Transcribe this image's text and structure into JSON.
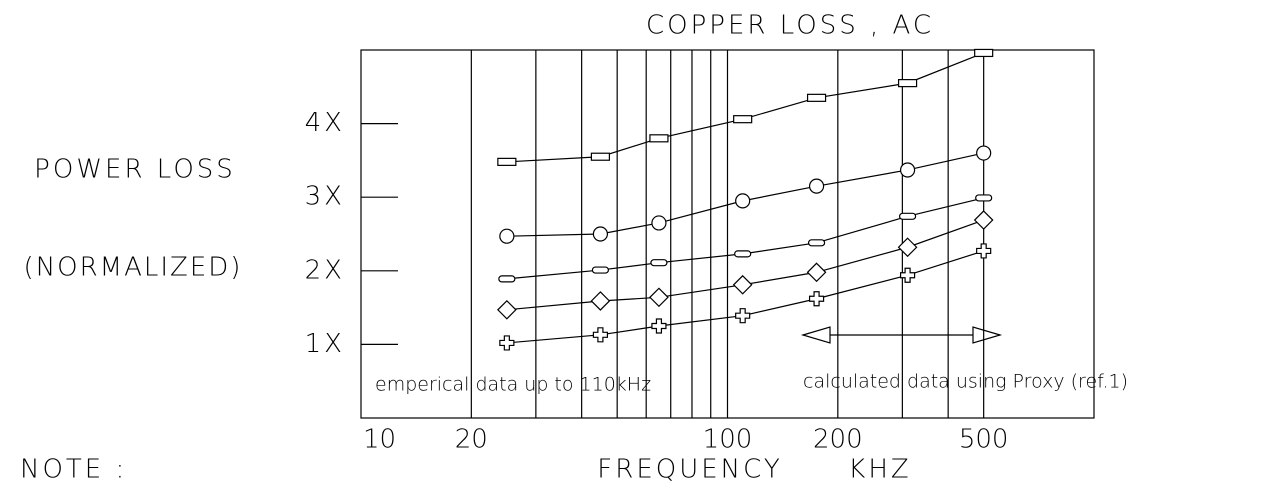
{
  "chart_data": {
    "type": "line",
    "title": "COPPER LOSS , AC",
    "y_label": [
      "POWER LOSS",
      "(NORMALIZED)"
    ],
    "x_label": [
      "FREQUENCY",
      "KHZ"
    ],
    "note": "NOTE :",
    "annotations": [
      "emperical data up to 110kHz",
      "calculated data using Proxy (ref.1)"
    ],
    "x": [
      25,
      45,
      65,
      110,
      175,
      310,
      500
    ],
    "series": [
      {
        "marker": "rect",
        "color": "#000000",
        "values": [
          3.48,
          3.55,
          3.8,
          4.06,
          4.35,
          4.55,
          4.96
        ]
      },
      {
        "marker": "circle",
        "color": "#000000",
        "values": [
          2.47,
          2.5,
          2.65,
          2.95,
          3.15,
          3.37,
          3.6
        ]
      },
      {
        "marker": "oval",
        "color": "#000000",
        "values": [
          1.89,
          2.01,
          2.11,
          2.23,
          2.38,
          2.74,
          2.99
        ]
      },
      {
        "marker": "diamond",
        "color": "#000000",
        "values": [
          1.47,
          1.59,
          1.64,
          1.81,
          1.98,
          2.32,
          2.69
        ]
      },
      {
        "marker": "plus",
        "color": "#000000",
        "values": [
          1.02,
          1.13,
          1.25,
          1.39,
          1.62,
          1.94,
          2.27
        ]
      }
    ],
    "xscale": "log",
    "xlim": [
      10,
      1000
    ],
    "xticks": [
      10,
      20,
      100,
      200,
      500
    ],
    "xminor": [
      30,
      40,
      50,
      60,
      70,
      80,
      90,
      300,
      400
    ],
    "ylim": [
      0,
      5
    ],
    "yticks": [
      {
        "value": 1,
        "label": "1X"
      },
      {
        "value": 2,
        "label": "2X"
      },
      {
        "value": 3,
        "label": "3X"
      },
      {
        "value": 4,
        "label": "4X"
      }
    ],
    "grid": true
  }
}
